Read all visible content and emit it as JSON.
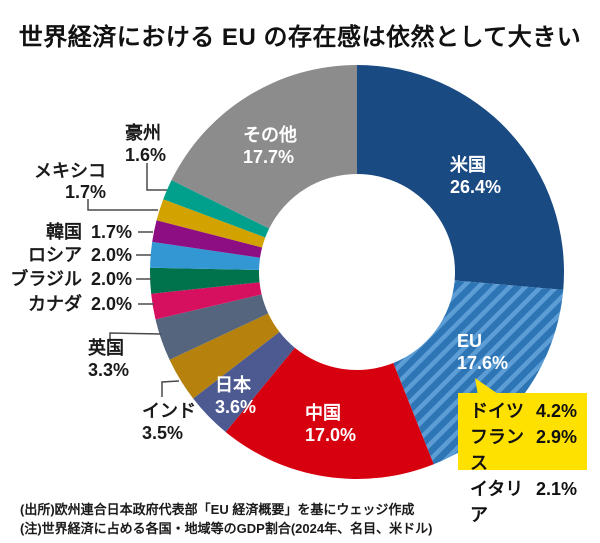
{
  "title": "世界経済における EU の存在感は依然として大きい",
  "chart_data": {
    "type": "pie",
    "subtype": "donut",
    "unit": "%",
    "start_angle_deg": 0,
    "direction": "clockwise",
    "legend_position": "none",
    "segments": [
      {
        "label": "米国",
        "value": 26.4,
        "value_label": "26.4%",
        "color": "#1a4a82"
      },
      {
        "label": "EU",
        "value": 17.6,
        "value_label": "17.6%",
        "color": "#2e75b6",
        "pattern": "diagonal-stripes",
        "pattern_color": "#5d9dd5"
      },
      {
        "label": "中国",
        "value": 17.0,
        "value_label": "17.0%",
        "color": "#d7000f"
      },
      {
        "label": "日本",
        "value": 3.6,
        "value_label": "3.6%",
        "color": "#4d5a92"
      },
      {
        "label": "インド",
        "value": 3.5,
        "value_label": "3.5%",
        "color": "#b6820d"
      },
      {
        "label": "英国",
        "value": 3.3,
        "value_label": "3.3%",
        "color": "#55657e"
      },
      {
        "label": "カナダ",
        "value": 2.0,
        "value_label": "2.0%",
        "color": "#d70f5f"
      },
      {
        "label": "ブラジル",
        "value": 2.0,
        "value_label": "2.0%",
        "color": "#00724c"
      },
      {
        "label": "ロシア",
        "value": 2.0,
        "value_label": "2.0%",
        "color": "#3397d4"
      },
      {
        "label": "韓国",
        "value": 1.7,
        "value_label": "1.7%",
        "color": "#8c0e82"
      },
      {
        "label": "メキシコ",
        "value": 1.7,
        "value_label": "1.7%",
        "color": "#d2a200"
      },
      {
        "label": "豪州",
        "value": 1.6,
        "value_label": "1.6%",
        "color": "#00a08c"
      },
      {
        "label": "その他",
        "value": 17.7,
        "value_label": "17.7%",
        "color": "#8c8c8c"
      }
    ]
  },
  "callout": {
    "rows": [
      {
        "name": "ドイツ",
        "value": "4.2%"
      },
      {
        "name": "フランス",
        "value": "2.9%"
      },
      {
        "name": "イタリア",
        "value": "2.1%"
      }
    ]
  },
  "source": "(出所)欧州連合日本政府代表部「EU 経済概要」を基にウェッジ作成",
  "note": "(注)世界経済に占める各国・地域等のGDP割合(2024年、名目、米ドル)",
  "colors": {
    "background": "#ffffff",
    "title_text": "#111111",
    "outside_label_text": "#1a1a1a",
    "inside_label_text": "#ffffff",
    "leader_line": "#4a4a4a",
    "callout_bg": "#ffe100",
    "callout_text": "#111111"
  }
}
